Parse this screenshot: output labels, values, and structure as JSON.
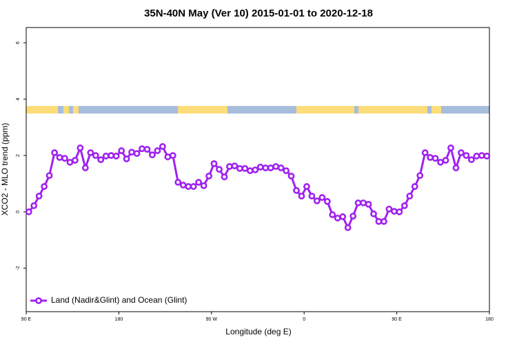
{
  "chart_data": {
    "type": "line",
    "title": "35N-40N May (Ver 10)   2015-01-01 to 2020-12-18",
    "xlabel": "Longitude (deg E)",
    "ylabel": "XCO2 - MLO trend (ppm)",
    "xlim": [
      90,
      540
    ],
    "xticks": [
      {
        "value": 90,
        "label": "90 E"
      },
      {
        "value": 180,
        "label": "180"
      },
      {
        "value": 270,
        "label": "90 W"
      },
      {
        "value": 360,
        "label": "0"
      },
      {
        "value": 450,
        "label": "90 E"
      },
      {
        "value": 540,
        "label": "180"
      }
    ],
    "ylim": [
      -3.54,
      6.54
    ],
    "yticks": [
      -2,
      0,
      2,
      4,
      6
    ],
    "legend": "bottom-left",
    "x": [
      92.5,
      97.5,
      102.5,
      107.5,
      112.5,
      117.5,
      122.5,
      127.5,
      132.5,
      137.5,
      142.5,
      147.5,
      152.5,
      157.5,
      162.5,
      167.5,
      172.5,
      177.5,
      182.5,
      187.5,
      192.5,
      197.5,
      202.5,
      207.5,
      212.5,
      217.5,
      222.5,
      227.5,
      232.5,
      237.5,
      242.5,
      247.5,
      252.5,
      257.5,
      262.5,
      267.5,
      272.5,
      277.5,
      282.5,
      287.5,
      292.5,
      297.5,
      302.5,
      307.5,
      312.5,
      317.5,
      322.5,
      327.5,
      332.5,
      337.5,
      342.5,
      347.5,
      352.5,
      357.5,
      362.5,
      367.5,
      372.5,
      377.5,
      382.5,
      387.5,
      392.5,
      397.5,
      402.5,
      407.5,
      412.5,
      417.5,
      422.5,
      427.5,
      432.5,
      437.5,
      442.5,
      447.5,
      452.5,
      457.5,
      462.5,
      467.5,
      472.5,
      477.5,
      482.5,
      487.5,
      492.5,
      497.5,
      502.5,
      507.5,
      512.5,
      517.5,
      522.5,
      527.5,
      532.5,
      537.5
    ],
    "series": [
      {
        "name": "Land (Nadir&Glint) and Ocean (Glint)",
        "color": "#a020f0",
        "values": [
          0,
          0.22,
          0.56,
          0.9,
          1.29,
          2.1,
          1.93,
          1.9,
          1.76,
          1.83,
          2.27,
          1.56,
          2.1,
          2.0,
          1.85,
          1.98,
          2.0,
          1.98,
          2.17,
          1.88,
          2.12,
          2.07,
          2.24,
          2.22,
          2.02,
          2.17,
          2.32,
          1.95,
          2.0,
          1.05,
          0.95,
          0.9,
          0.9,
          1.05,
          0.93,
          1.27,
          1.71,
          1.51,
          1.24,
          1.61,
          1.63,
          1.54,
          1.54,
          1.46,
          1.49,
          1.59,
          1.56,
          1.56,
          1.61,
          1.56,
          1.46,
          1.27,
          0.76,
          0.56,
          0.9,
          0.56,
          0.39,
          0.51,
          0.37,
          -0.1,
          -0.22,
          -0.17,
          -0.56,
          -0.15,
          0.32,
          0.32,
          0.27,
          -0.07,
          -0.34,
          -0.34,
          0.1,
          0.02,
          0,
          0.22,
          0.56,
          0.9,
          1.29,
          2.1,
          1.93,
          1.9,
          1.76,
          1.83,
          2.27,
          1.56,
          2.1,
          2.0,
          1.85,
          1.98,
          2.0,
          1.98
        ]
      }
    ]
  }
}
